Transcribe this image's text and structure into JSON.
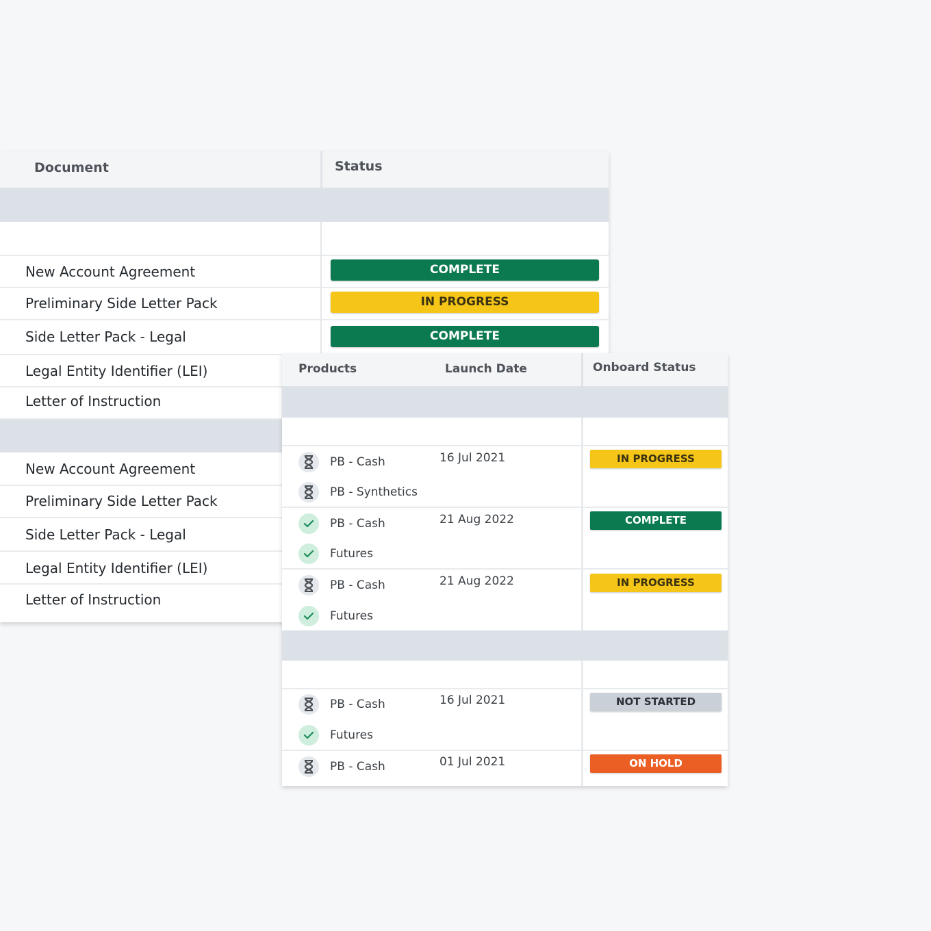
{
  "colors": {
    "complete": "#0b7a50",
    "in_progress": "#f5c518",
    "not_started": "#c9d0d8",
    "on_hold": "#ec5f24"
  },
  "documents_table": {
    "headers": {
      "document": "Document",
      "status": "Status"
    },
    "groups": [
      {
        "rows": [
          {
            "document": "New Account Agreement",
            "status": "COMPLETE",
            "status_type": "complete"
          },
          {
            "document": "Preliminary Side Letter Pack",
            "status": "IN PROGRESS",
            "status_type": "in_progress"
          },
          {
            "document": "Side Letter Pack - Legal",
            "status": "COMPLETE",
            "status_type": "complete"
          },
          {
            "document": "Legal Entity Identifier (LEI)"
          },
          {
            "document": "Letter of Instruction"
          }
        ]
      },
      {
        "rows": [
          {
            "document": "New Account Agreement"
          },
          {
            "document": "Preliminary Side Letter Pack"
          },
          {
            "document": "Side Letter Pack - Legal"
          },
          {
            "document": "Legal Entity Identifier (LEI)"
          },
          {
            "document": "Letter of Instruction"
          }
        ]
      }
    ]
  },
  "products_table": {
    "headers": {
      "products": "Products",
      "launch_date": "Launch Date",
      "onboard_status": "Onboard Status"
    },
    "groups": [
      {
        "rows": [
          {
            "products": [
              {
                "name": "PB - Cash",
                "icon": "hourglass-icon"
              },
              {
                "name": "PB - Synthetics",
                "icon": "hourglass-icon"
              }
            ],
            "launch_date": "16 Jul 2021",
            "status": "IN PROGRESS",
            "status_type": "in_progress"
          },
          {
            "products": [
              {
                "name": "PB - Cash",
                "icon": "check-icon"
              },
              {
                "name": "Futures",
                "icon": "check-icon"
              }
            ],
            "launch_date": "21 Aug 2022",
            "status": "COMPLETE",
            "status_type": "complete"
          },
          {
            "products": [
              {
                "name": "PB - Cash",
                "icon": "hourglass-icon"
              },
              {
                "name": "Futures",
                "icon": "check-icon"
              }
            ],
            "launch_date": "21 Aug 2022",
            "status": "IN PROGRESS",
            "status_type": "in_progress"
          }
        ]
      },
      {
        "rows": [
          {
            "products": [
              {
                "name": "PB - Cash",
                "icon": "hourglass-icon"
              },
              {
                "name": "Futures",
                "icon": "check-icon"
              }
            ],
            "launch_date": "16 Jul 2021",
            "status": "NOT STARTED",
            "status_type": "not_started"
          },
          {
            "products": [
              {
                "name": "PB - Cash",
                "icon": "hourglass-icon"
              }
            ],
            "launch_date": "01 Jul 2021",
            "status": "ON HOLD",
            "status_type": "on_hold"
          }
        ]
      }
    ]
  }
}
